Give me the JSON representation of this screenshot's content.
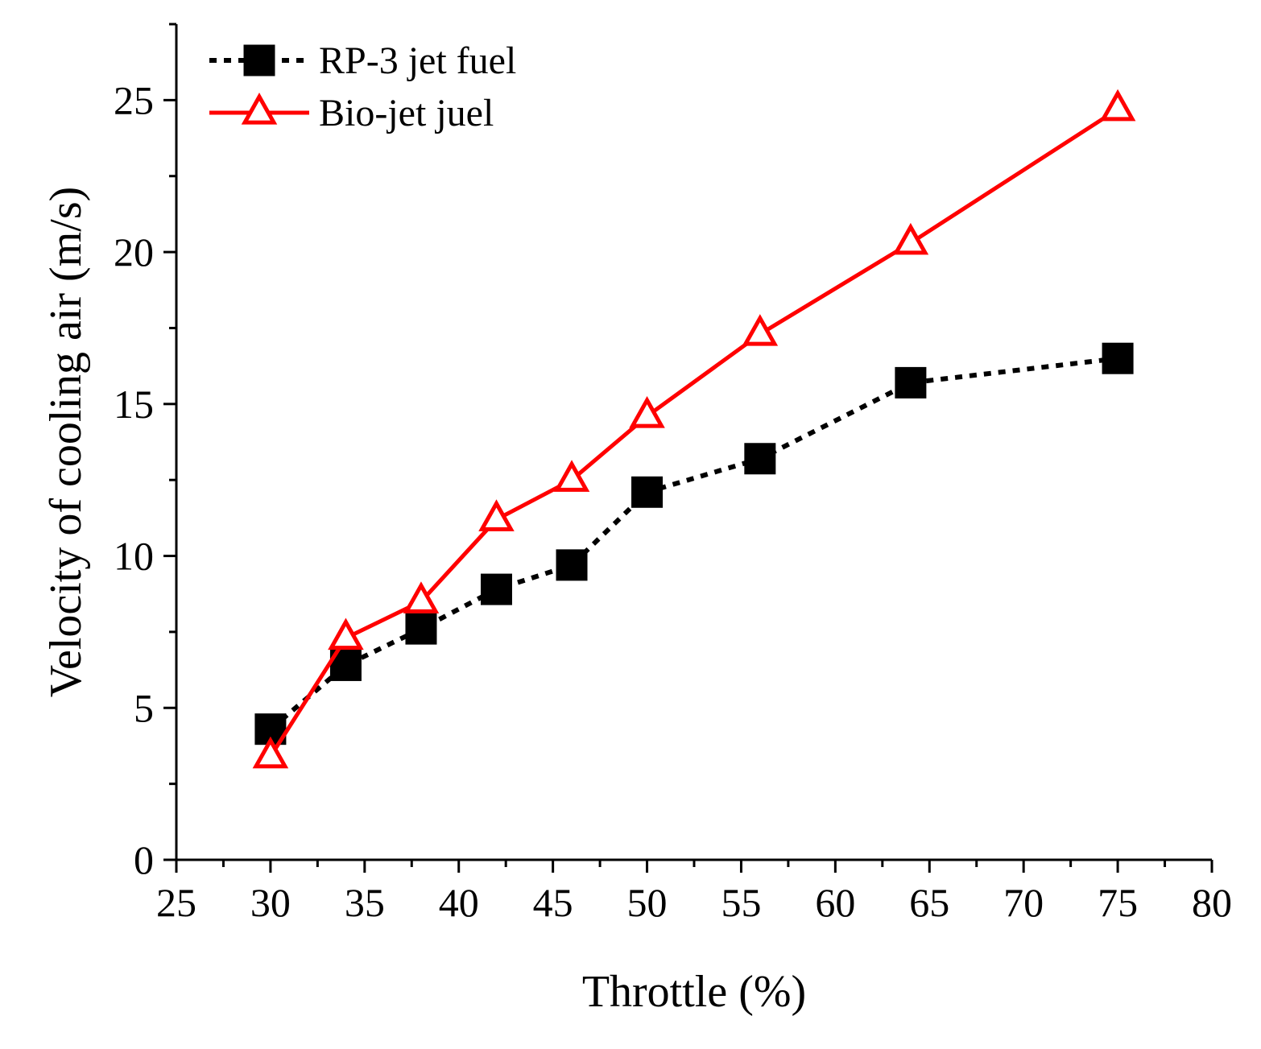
{
  "chart_data": {
    "type": "line",
    "title": "",
    "xlabel": "Throttle (%)",
    "ylabel": "Velocity of cooling air (m/s)",
    "xlim": [
      25,
      80
    ],
    "ylim": [
      0,
      27.5
    ],
    "x_ticks": [
      25,
      30,
      35,
      40,
      45,
      50,
      55,
      60,
      65,
      70,
      75,
      80
    ],
    "y_ticks": [
      0,
      5,
      10,
      15,
      20,
      25
    ],
    "grid": false,
    "legend_position": "top-left",
    "series": [
      {
        "name": "RP-3 jet fuel",
        "color": "#000000",
        "line_style": "dotted",
        "marker": "filled-square",
        "x": [
          30,
          34,
          38,
          42,
          46,
          50,
          56,
          64,
          75
        ],
        "values": [
          4.3,
          6.4,
          7.6,
          8.9,
          9.7,
          12.1,
          13.2,
          15.7,
          16.5
        ]
      },
      {
        "name": "Bio-jet juel",
        "color": "#ff0000",
        "line_style": "solid",
        "marker": "open-triangle",
        "x": [
          30,
          34,
          38,
          42,
          46,
          50,
          56,
          64,
          75
        ],
        "values": [
          3.4,
          7.3,
          8.5,
          11.2,
          12.5,
          14.6,
          17.3,
          20.3,
          24.7
        ]
      }
    ]
  }
}
